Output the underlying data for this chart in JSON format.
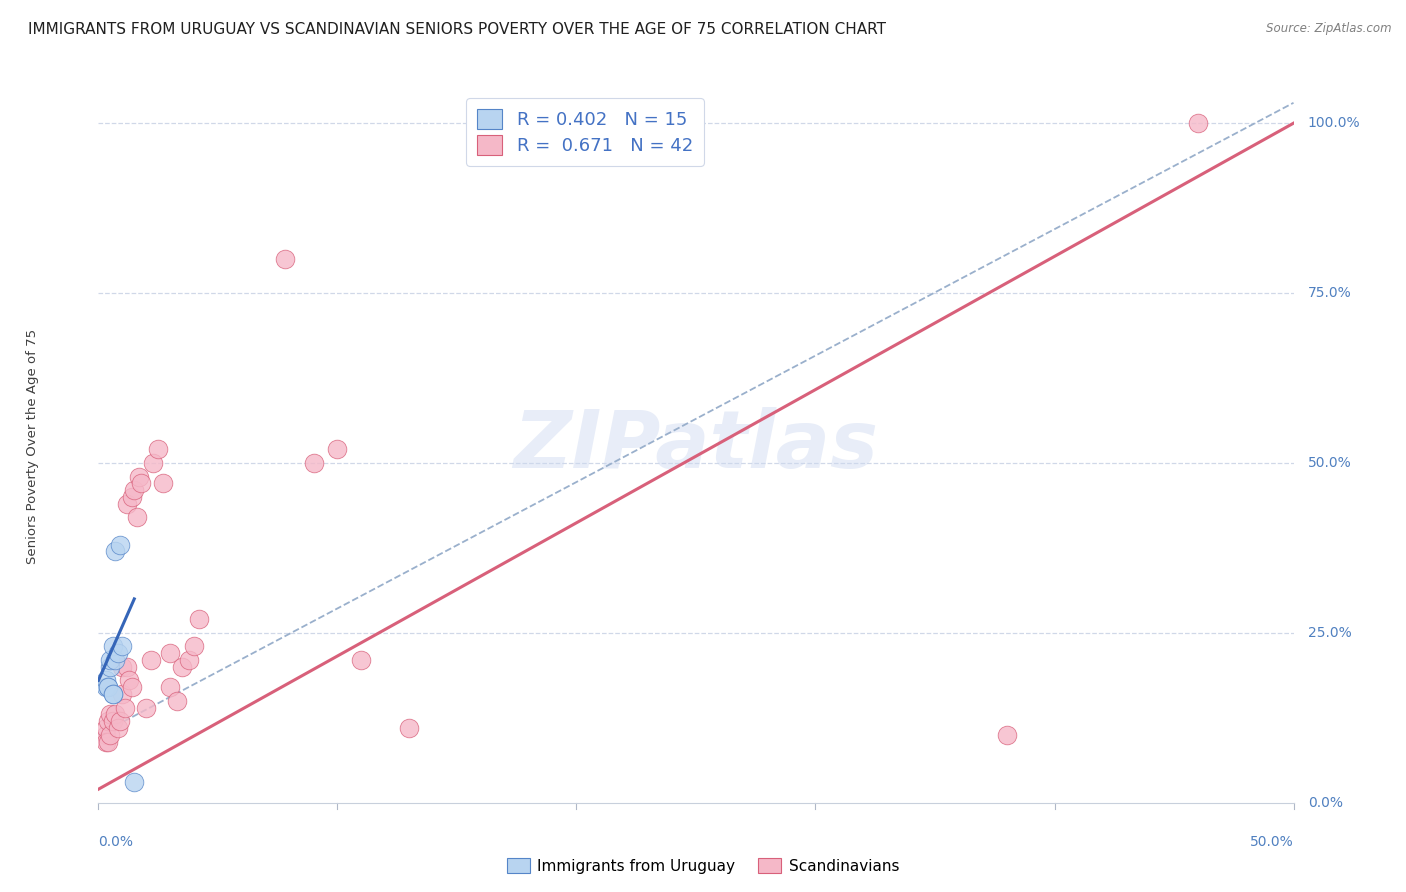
{
  "title": "IMMIGRANTS FROM URUGUAY VS SCANDINAVIAN SENIORS POVERTY OVER THE AGE OF 75 CORRELATION CHART",
  "source": "Source: ZipAtlas.com",
  "ylabel": "Seniors Poverty Over the Age of 75",
  "right_ytick_labels": [
    "100.0%",
    "75.0%",
    "50.0%",
    "25.0%",
    "0.0%"
  ],
  "right_ytick_vals": [
    1.0,
    0.75,
    0.5,
    0.25,
    0.0
  ],
  "xlim": [
    0.0,
    0.5
  ],
  "ylim": [
    0.0,
    1.05
  ],
  "watermark": "ZIPatlas",
  "legend_blue_R": "0.402",
  "legend_blue_N": "15",
  "legend_pink_R": "0.671",
  "legend_pink_N": "42",
  "legend_label_blue": "Immigrants from Uruguay",
  "legend_label_pink": "Scandinavians",
  "blue_scatter_x": [
    0.003,
    0.003,
    0.004,
    0.004,
    0.005,
    0.005,
    0.006,
    0.006,
    0.006,
    0.007,
    0.007,
    0.008,
    0.009,
    0.01,
    0.015
  ],
  "blue_scatter_y": [
    0.17,
    0.18,
    0.17,
    0.17,
    0.2,
    0.21,
    0.16,
    0.16,
    0.23,
    0.21,
    0.37,
    0.22,
    0.38,
    0.23,
    0.03
  ],
  "pink_scatter_x": [
    0.003,
    0.003,
    0.003,
    0.004,
    0.004,
    0.005,
    0.005,
    0.006,
    0.007,
    0.008,
    0.009,
    0.01,
    0.01,
    0.011,
    0.012,
    0.012,
    0.013,
    0.014,
    0.014,
    0.015,
    0.016,
    0.017,
    0.018,
    0.02,
    0.022,
    0.023,
    0.025,
    0.027,
    0.03,
    0.03,
    0.033,
    0.035,
    0.038,
    0.04,
    0.042,
    0.078,
    0.09,
    0.1,
    0.11,
    0.13,
    0.38,
    0.46
  ],
  "pink_scatter_y": [
    0.1,
    0.11,
    0.09,
    0.12,
    0.09,
    0.13,
    0.1,
    0.12,
    0.13,
    0.11,
    0.12,
    0.2,
    0.16,
    0.14,
    0.2,
    0.44,
    0.18,
    0.17,
    0.45,
    0.46,
    0.42,
    0.48,
    0.47,
    0.14,
    0.21,
    0.5,
    0.52,
    0.47,
    0.17,
    0.22,
    0.15,
    0.2,
    0.21,
    0.23,
    0.27,
    0.8,
    0.5,
    0.52,
    0.21,
    0.11,
    0.1,
    1.0
  ],
  "blue_line_x": [
    0.0,
    0.015
  ],
  "blue_line_y": [
    0.18,
    0.3
  ],
  "pink_line_x": [
    0.0,
    0.5
  ],
  "pink_line_y": [
    0.02,
    1.0
  ],
  "dashed_line_x": [
    0.0,
    0.5
  ],
  "dashed_line_y": [
    0.1,
    1.03
  ],
  "blue_marker_color": "#b8d4f0",
  "blue_edge_color": "#5585c8",
  "blue_line_color": "#3565b8",
  "pink_marker_color": "#f5b8c8",
  "pink_edge_color": "#d8607a",
  "pink_line_color": "#d8607a",
  "dashed_line_color": "#9ab0cc",
  "background_color": "#ffffff",
  "grid_color": "#d0d8e8",
  "title_fontsize": 11,
  "axis_label_fontsize": 9.5,
  "tick_fontsize": 10,
  "watermark_color": "#ccd8f0",
  "watermark_alpha": 0.45,
  "right_tick_color": "#5080c0",
  "xlabel_color": "#5080c0"
}
